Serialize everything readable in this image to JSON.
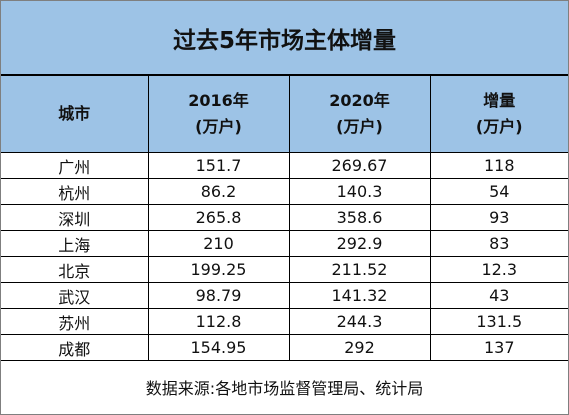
{
  "title": "过去5年市场主体增量",
  "headers": [
    {
      "line1": "城市",
      "line2": ""
    },
    {
      "line1": "2016年",
      "line2": "(万户)"
    },
    {
      "line1": "2020年",
      "line2": "(万户)"
    },
    {
      "line1": "增量",
      "line2": "(万户)"
    }
  ],
  "rows": [
    [
      "广州",
      "151.7",
      "269.67",
      "118"
    ],
    [
      "杭州",
      "86.2",
      "140.3",
      "54"
    ],
    [
      "深圳",
      "265.8",
      "358.6",
      "93"
    ],
    [
      "上海",
      "210",
      "292.9",
      "83"
    ],
    [
      "北京",
      "199.25",
      "211.52",
      "12.3"
    ],
    [
      "武汉",
      "98.79",
      "141.32",
      "43"
    ],
    [
      "苏州",
      "112.8",
      "244.3",
      "131.5"
    ],
    [
      "成都",
      "154.95",
      "292",
      "137"
    ]
  ],
  "source": "数据来源:各地市场监督管理局、统计局",
  "colors": {
    "header_bg": "#9dc3e6",
    "border": "#000000"
  }
}
